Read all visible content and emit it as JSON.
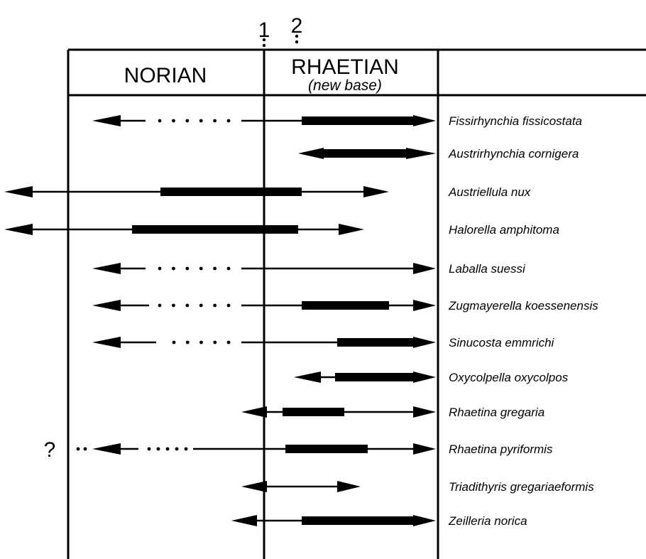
{
  "header": {
    "stage_left": "NORIAN",
    "stage_right": "RHAETIAN",
    "stage_right_note": "(new base)",
    "boundary_1": "1",
    "boundary_2": "2"
  },
  "uncertain_marker": "?",
  "taxa": [
    {
      "name": "Fissirhynchia fissicostata"
    },
    {
      "name": "Austrirhynchia cornigera"
    },
    {
      "name": "Austriellula nux"
    },
    {
      "name": "Halorella amphitoma"
    },
    {
      "name": "Laballa suessi"
    },
    {
      "name": "Zugmayerella koessenensis"
    },
    {
      "name": "Sinucosta emmrichi"
    },
    {
      "name": "Oxycolpella oxycolpos"
    },
    {
      "name": "Rhaetina gregaria"
    },
    {
      "name": "Rhaetina pyriformis"
    },
    {
      "name": "Triadithyris gregariaeformis"
    },
    {
      "name": "Zeilleria norica"
    }
  ]
}
